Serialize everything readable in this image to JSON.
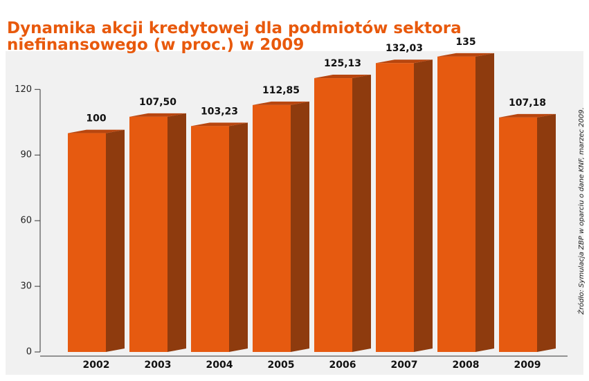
{
  "chart_data": {
    "type": "bar",
    "title": [
      "Dynamika akcji kredytowej dla podmiotów sektora",
      "niefinansowego (w proc.) w 2009"
    ],
    "source": "Źródło: Symulacja ZBP w oparciu o dane KNF, marzec 2009.",
    "categories": [
      "2002",
      "2003",
      "2004",
      "2005",
      "2006",
      "2007",
      "2008",
      "2009"
    ],
    "values": [
      100,
      107.5,
      103.23,
      112.85,
      125.13,
      132.03,
      135,
      107.18
    ],
    "value_labels": [
      "100",
      "107,50",
      "103,23",
      "112,85",
      "125,13",
      "132,03",
      "135",
      "107,18"
    ],
    "color": "#e65a10",
    "ylim": [
      0,
      140
    ],
    "yticks": [
      0,
      30,
      60,
      90,
      120
    ]
  }
}
